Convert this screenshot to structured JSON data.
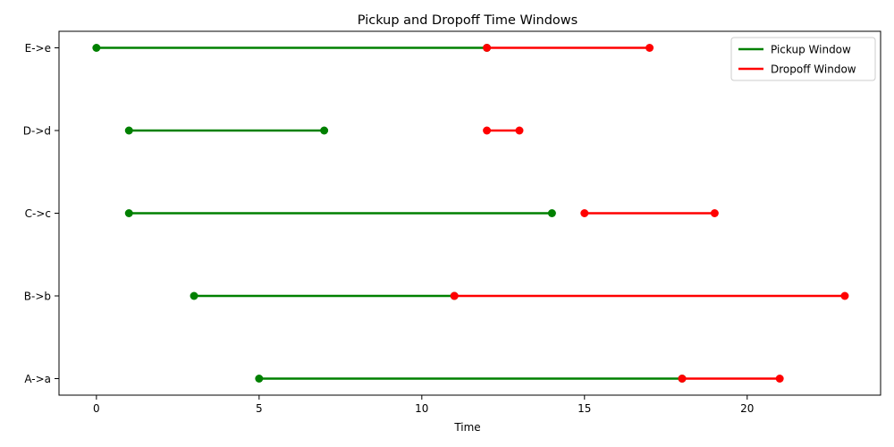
{
  "chart_data": {
    "type": "line",
    "title": "Pickup and Dropoff Time Windows",
    "xlabel": "Time",
    "ylabel": "",
    "xlim": [
      -1.15,
      24.1
    ],
    "xticks": [
      0,
      5,
      10,
      15,
      20
    ],
    "xtick_labels": [
      "0",
      "5",
      "10",
      "15",
      "20"
    ],
    "categories": [
      "A->a",
      "B->b",
      "C->c",
      "D->d",
      "E->e"
    ],
    "grid": false,
    "legend_position": "top-right",
    "series": [
      {
        "name": "Pickup Window",
        "color": "#008000",
        "windows": [
          {
            "category": "A->a",
            "start": 5,
            "end": 18
          },
          {
            "category": "B->b",
            "start": 3,
            "end": 11
          },
          {
            "category": "C->c",
            "start": 1,
            "end": 14
          },
          {
            "category": "D->d",
            "start": 1,
            "end": 7
          },
          {
            "category": "E->e",
            "start": 0,
            "end": 12
          }
        ]
      },
      {
        "name": "Dropoff Window",
        "color": "#ff0000",
        "windows": [
          {
            "category": "A->a",
            "start": 18,
            "end": 21
          },
          {
            "category": "B->b",
            "start": 11,
            "end": 23
          },
          {
            "category": "C->c",
            "start": 15,
            "end": 19
          },
          {
            "category": "D->d",
            "start": 12,
            "end": 13
          },
          {
            "category": "E->e",
            "start": 12,
            "end": 17
          }
        ]
      }
    ]
  }
}
